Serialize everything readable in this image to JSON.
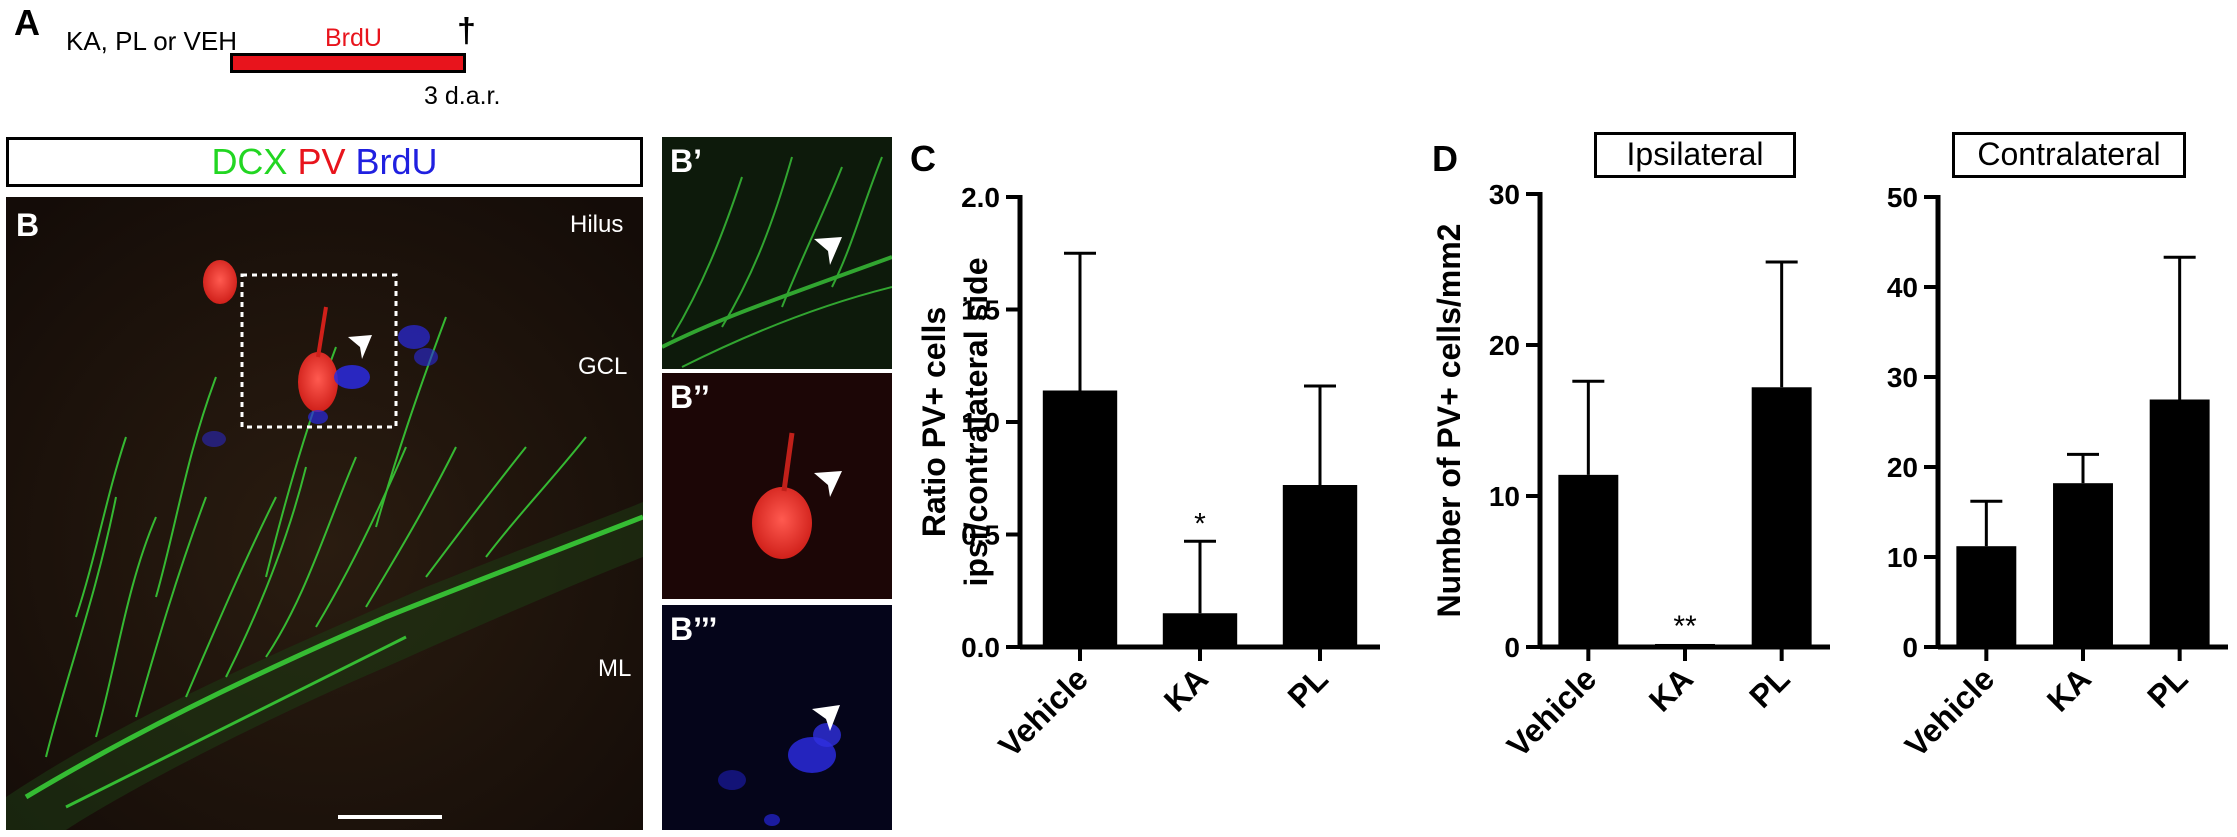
{
  "panelA": {
    "letter": "A",
    "treatment_label": "KA, PL or VEH",
    "brdu_label": "BrdU",
    "dagger": "†",
    "timepoint": "3 d.a.r.",
    "brdu_color": "#e8141c"
  },
  "panelB": {
    "stain_header": {
      "dcx": "DCX",
      "pv": "PV",
      "brdu": "BrdU"
    },
    "stain_colors": {
      "dcx": "#22d622",
      "pv": "#e8141c",
      "brdu": "#2020e0"
    },
    "letter": "B",
    "labels": {
      "hilus": "Hilus",
      "gcl": "GCL",
      "ml": "ML"
    },
    "insets": [
      {
        "letter": "B’"
      },
      {
        "letter": "B’’"
      },
      {
        "letter": "B’’’"
      }
    ]
  },
  "panelC": {
    "letter": "C"
  },
  "panelD": {
    "letter": "D"
  },
  "chart_data": [
    {
      "type": "bar",
      "categories": [
        "Vehicle",
        "KA",
        "PL"
      ],
      "values": [
        1.14,
        0.15,
        0.72
      ],
      "errors": [
        0.61,
        0.32,
        0.44
      ],
      "significance": [
        "",
        "*",
        ""
      ],
      "title": "",
      "ylabel_line1": "Ratio PV+ cells",
      "ylabel_line2": "ipsi/contralateral side",
      "ylim": [
        0,
        2.0
      ],
      "ticks": [
        "0.0",
        "0.5",
        "1.0",
        "1.5",
        "2.0"
      ]
    },
    {
      "type": "bar",
      "categories": [
        "Vehicle",
        "KA",
        "PL"
      ],
      "values": [
        11.4,
        0.2,
        17.2
      ],
      "errors": [
        6.2,
        0,
        8.3
      ],
      "significance": [
        "",
        "**",
        ""
      ],
      "title": "Ipsilateral",
      "ylabel": "Number of PV+ cells/mm2",
      "ylim": [
        0,
        30
      ],
      "ticks": [
        "0",
        "10",
        "20",
        "30"
      ]
    },
    {
      "type": "bar",
      "categories": [
        "Vehicle",
        "KA",
        "PL"
      ],
      "values": [
        11.2,
        18.2,
        27.5
      ],
      "errors": [
        5.0,
        3.2,
        15.8
      ],
      "significance": [
        "",
        "",
        ""
      ],
      "title": "Contralateral",
      "ylabel": "",
      "ylim": [
        0,
        50
      ],
      "ticks": [
        "0",
        "10",
        "20",
        "30",
        "40",
        "50"
      ]
    }
  ]
}
